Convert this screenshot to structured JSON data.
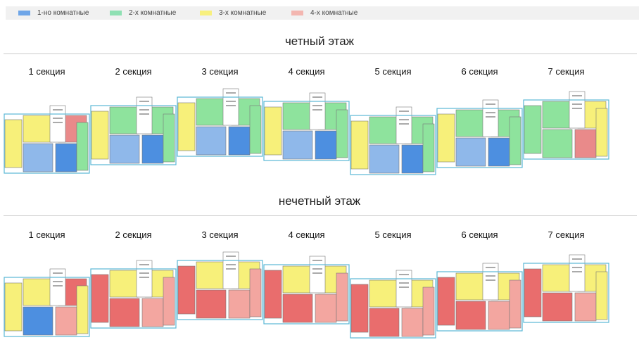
{
  "legend": [
    {
      "label": "1-но комнатные",
      "color": "#6fa6e8"
    },
    {
      "label": "2-х комнатные",
      "color": "#8fe0b3"
    },
    {
      "label": "3-х комнатные",
      "color": "#f8f07e"
    },
    {
      "label": "4-х комнатные",
      "color": "#f3a6a0"
    }
  ],
  "floors": [
    {
      "title": "четный этаж",
      "sections": [
        {
          "label": "1 секция",
          "plan": [
            "#f7f07a",
            "#f7f07a",
            "#e98a8a",
            "#8fb8ea",
            "#4d8fe0",
            "#8ee39d"
          ]
        },
        {
          "label": "2 секция",
          "plan": [
            "#f7f07a",
            "#8ee39d",
            "#8ee39d",
            "#8fb8ea",
            "#4d8fe0",
            "#8ee39d"
          ]
        },
        {
          "label": "3 секция",
          "plan": [
            "#f7f07a",
            "#8ee39d",
            "#8ee39d",
            "#8fb8ea",
            "#4d8fe0",
            "#8ee39d"
          ]
        },
        {
          "label": "4 секция",
          "plan": [
            "#f7f07a",
            "#8ee39d",
            "#8ee39d",
            "#8fb8ea",
            "#4d8fe0",
            "#8ee39d"
          ]
        },
        {
          "label": "5 секция",
          "plan": [
            "#f7f07a",
            "#8ee39d",
            "#8ee39d",
            "#8fb8ea",
            "#4d8fe0",
            "#8ee39d"
          ]
        },
        {
          "label": "6 секция",
          "plan": [
            "#f7f07a",
            "#8ee39d",
            "#8ee39d",
            "#8fb8ea",
            "#4d8fe0",
            "#8ee39d"
          ]
        },
        {
          "label": "7 секция",
          "plan": [
            "#8ee39d",
            "#8ee39d",
            "#f7f07a",
            "#8ee39d",
            "#e98a8a",
            "#f7f07a"
          ]
        }
      ]
    },
    {
      "title": "нечетный этаж",
      "sections": [
        {
          "label": "1 секция",
          "plan": [
            "#f7f07a",
            "#f7f07a",
            "#e96d6d",
            "#4d8fe0",
            "#f3a6a0",
            "#f7f07a"
          ]
        },
        {
          "label": "2 секция",
          "plan": [
            "#e96d6d",
            "#f7f07a",
            "#f7f07a",
            "#e96d6d",
            "#f3a6a0",
            "#f3a6a0"
          ]
        },
        {
          "label": "3 секция",
          "plan": [
            "#e96d6d",
            "#f7f07a",
            "#f7f07a",
            "#e96d6d",
            "#f3a6a0",
            "#f3a6a0"
          ]
        },
        {
          "label": "4 секция",
          "plan": [
            "#e96d6d",
            "#f7f07a",
            "#f7f07a",
            "#e96d6d",
            "#f3a6a0",
            "#f3a6a0"
          ]
        },
        {
          "label": "5 секция",
          "plan": [
            "#e96d6d",
            "#f7f07a",
            "#f7f07a",
            "#e96d6d",
            "#f3a6a0",
            "#f3a6a0"
          ]
        },
        {
          "label": "6 секция",
          "plan": [
            "#e96d6d",
            "#f7f07a",
            "#f7f07a",
            "#e96d6d",
            "#f3a6a0",
            "#f3a6a0"
          ]
        },
        {
          "label": "7 секция",
          "plan": [
            "#e96d6d",
            "#f7f07a",
            "#f7f07a",
            "#e96d6d",
            "#f3a6a0",
            "#f7f07a"
          ]
        }
      ]
    }
  ]
}
